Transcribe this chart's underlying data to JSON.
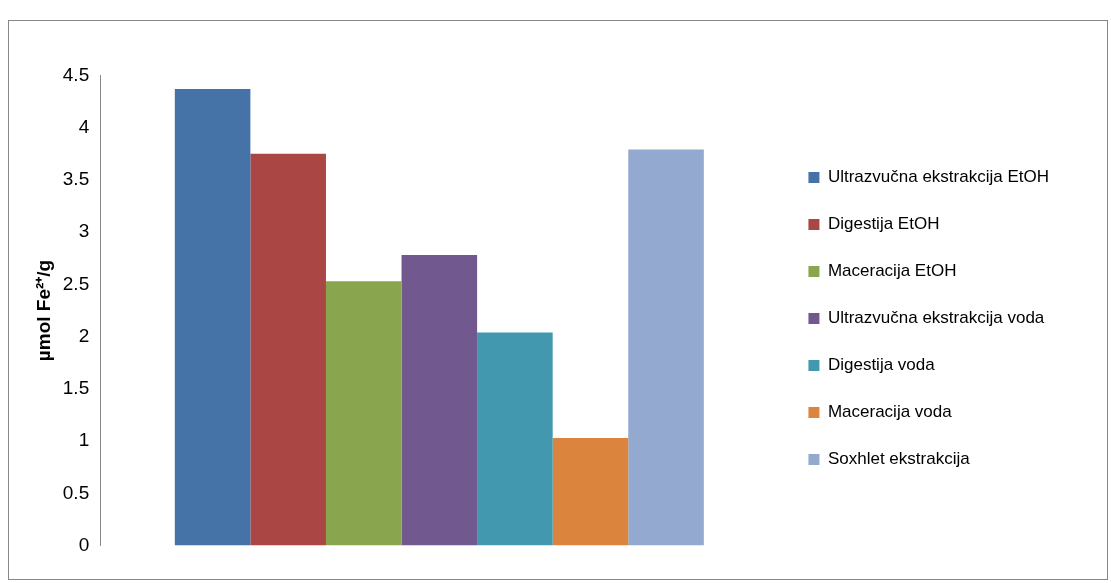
{
  "chart_data": {
    "type": "bar",
    "ylabel": "µmol Fe²⁺/g",
    "categories": [
      null
    ],
    "series": [
      {
        "name": "Ultrazvučna ekstrakcija EtOH",
        "color": "#4572a7",
        "values": [
          4.37
        ]
      },
      {
        "name": "Digestija EtOH",
        "color": "#aa4643",
        "values": [
          3.75
        ]
      },
      {
        "name": "Maceracija EtOH",
        "color": "#89a54e",
        "values": [
          2.53
        ]
      },
      {
        "name": "Ultrazvučna ekstrakcija voda",
        "color": "#71588f",
        "values": [
          2.78
        ]
      },
      {
        "name": "Digestija voda",
        "color": "#4198af",
        "values": [
          2.04
        ]
      },
      {
        "name": "Maceracija voda",
        "color": "#db843d",
        "values": [
          1.03
        ]
      },
      {
        "name": "Soxhlet ekstrakcija",
        "color": "#93a9cf",
        "values": [
          3.79
        ]
      }
    ],
    "ylim": [
      0,
      4.5
    ],
    "yticks": [
      0,
      0.5,
      1,
      1.5,
      2,
      2.5,
      3,
      3.5,
      4,
      4.5
    ],
    "grid": false,
    "legend": "right"
  }
}
